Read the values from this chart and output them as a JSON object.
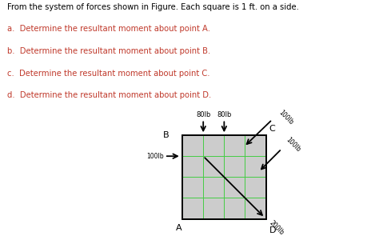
{
  "title_text": "From the system of forces shown in Figure. Each square is 1 ft. on a side.",
  "questions": [
    "a.  Determine the resultant moment about point A.",
    "b.  Determine the resultant moment about point B.",
    "c.  Determine the resultant moment about point C.",
    "d.  Determine the resultant moment about point D."
  ],
  "text_color": "#c0392b",
  "title_color": "#000000",
  "background_color": "#ffffff",
  "grid_bg": "#cccccc",
  "grid_color": "#44cc44",
  "grid_nx": 4,
  "grid_ny": 4,
  "grid_cell_size": 1
}
